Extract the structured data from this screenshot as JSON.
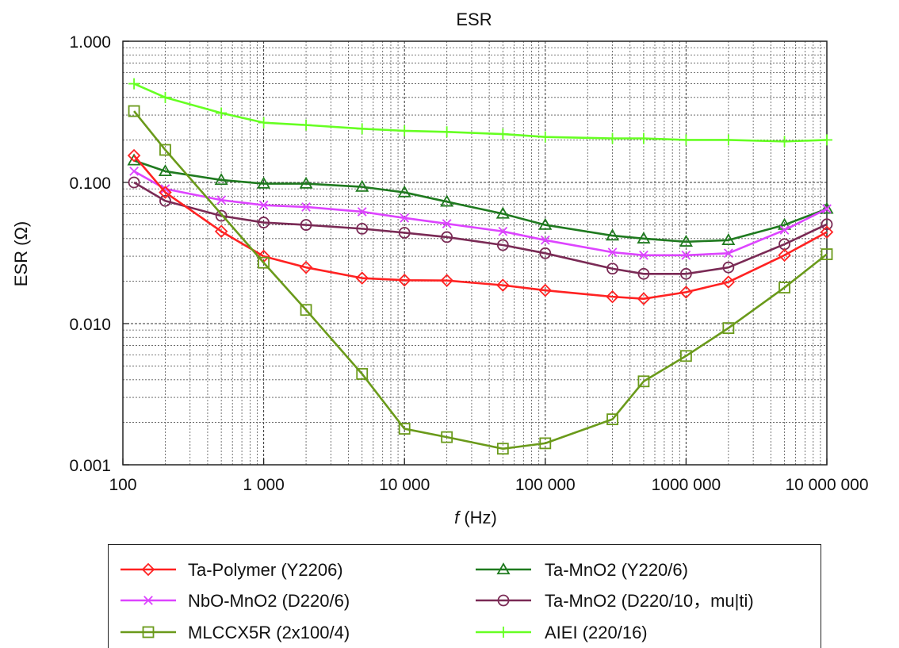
{
  "chart_data": {
    "type": "line",
    "title": "ESR",
    "xlabel_italic": "f",
    "xlabel_rest": " (Hz)",
    "ylabel": "ESR (Ω)",
    "x_scale": "log",
    "y_scale": "log",
    "xlim": [
      100,
      10000000
    ],
    "ylim": [
      0.001,
      1
    ],
    "grid": true,
    "legend_position": "bottom",
    "x_ticks": [
      {
        "value": 100,
        "label": "100"
      },
      {
        "value": 1000,
        "label": "1 000"
      },
      {
        "value": 10000,
        "label": "10 000"
      },
      {
        "value": 100000,
        "label": "100 000"
      },
      {
        "value": 1000000,
        "label": "1000 000"
      },
      {
        "value": 10000000,
        "label": "10 000 000"
      }
    ],
    "y_ticks": [
      {
        "value": 0.001,
        "label": "0.001"
      },
      {
        "value": 0.01,
        "label": "0.010"
      },
      {
        "value": 0.1,
        "label": "0.100"
      },
      {
        "value": 1,
        "label": "1.000"
      }
    ],
    "series": [
      {
        "name": "Ta-Polymer (Y2206)",
        "color": "#ff2222",
        "marker": "diamond",
        "x": [
          120,
          200,
          500,
          1000,
          2000,
          5000,
          10000,
          20000,
          50000,
          100000,
          300000,
          500000,
          1000000,
          2000000,
          5000000,
          10000000
        ],
        "y": [
          0.155,
          0.085,
          0.045,
          0.03,
          0.025,
          0.021,
          0.0203,
          0.0202,
          0.0187,
          0.0172,
          0.0155,
          0.015,
          0.0167,
          0.0197,
          0.0305,
          0.0445
        ]
      },
      {
        "name": "NbO-MnO2 (D220/6)",
        "color": "#dd44ff",
        "marker": "x",
        "x": [
          120,
          200,
          500,
          1000,
          2000,
          5000,
          10000,
          20000,
          50000,
          100000,
          300000,
          500000,
          1000000,
          2000000,
          5000000,
          10000000
        ],
        "y": [
          0.12,
          0.09,
          0.075,
          0.069,
          0.067,
          0.062,
          0.056,
          0.051,
          0.045,
          0.039,
          0.032,
          0.0305,
          0.0305,
          0.0315,
          0.046,
          0.065
        ]
      },
      {
        "name": "MLCCX5R (2x100/4)",
        "color": "#6a9a1a",
        "marker": "square",
        "x": [
          120,
          200,
          1000,
          2000,
          5000,
          10000,
          20000,
          50000,
          100000,
          300000,
          500000,
          1000000,
          2000000,
          5000000,
          10000000
        ],
        "y": [
          0.32,
          0.17,
          0.027,
          0.0125,
          0.0044,
          0.0018,
          0.00157,
          0.0013,
          0.00142,
          0.0021,
          0.0039,
          0.0059,
          0.0093,
          0.018,
          0.031
        ]
      },
      {
        "name": "Ta-MnO2 (Y220/6)",
        "color": "#1f7a1f",
        "marker": "triangle",
        "x": [
          120,
          200,
          500,
          1000,
          2000,
          5000,
          10000,
          20000,
          50000,
          100000,
          300000,
          500000,
          1000000,
          2000000,
          5000000,
          10000000
        ],
        "y": [
          0.143,
          0.12,
          0.104,
          0.098,
          0.098,
          0.093,
          0.085,
          0.073,
          0.06,
          0.05,
          0.042,
          0.04,
          0.038,
          0.039,
          0.05,
          0.065
        ]
      },
      {
        "name": "Ta-MnO2 (D220/10，mu|ti)",
        "color": "#7a2a55",
        "marker": "circle",
        "x": [
          120,
          200,
          500,
          1000,
          2000,
          5000,
          10000,
          20000,
          50000,
          100000,
          300000,
          500000,
          1000000,
          2000000,
          5000000,
          10000000
        ],
        "y": [
          0.1,
          0.074,
          0.058,
          0.052,
          0.05,
          0.047,
          0.044,
          0.041,
          0.036,
          0.0315,
          0.0245,
          0.0225,
          0.0225,
          0.025,
          0.0365,
          0.0505
        ]
      },
      {
        "name": "AIEI (220/16)",
        "color": "#66ff22",
        "marker": "plus",
        "x": [
          120,
          200,
          500,
          1000,
          2000,
          5000,
          10000,
          20000,
          50000,
          100000,
          300000,
          500000,
          1000000,
          2000000,
          5000000,
          10000000
        ],
        "y": [
          0.5,
          0.4,
          0.31,
          0.265,
          0.255,
          0.24,
          0.232,
          0.228,
          0.22,
          0.21,
          0.205,
          0.205,
          0.2,
          0.2,
          0.195,
          0.2
        ]
      }
    ]
  }
}
